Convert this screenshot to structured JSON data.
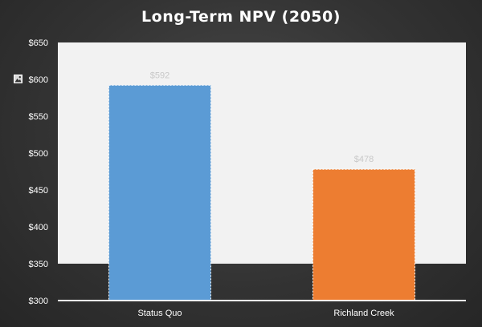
{
  "chart_data": {
    "type": "bar",
    "title": "Long-Term NPV (2050)",
    "xlabel": "",
    "ylabel": "",
    "categories": [
      "Status Quo",
      "Richland Creek"
    ],
    "values": [
      592,
      478
    ],
    "data_labels": [
      "$592",
      "$478"
    ],
    "ylim": [
      300,
      650
    ],
    "yticks": [
      300,
      350,
      400,
      450,
      500,
      550,
      600,
      650
    ],
    "ytick_labels": [
      "$300",
      "$350",
      "$400",
      "$450",
      "$500",
      "$550",
      "$600",
      "$650"
    ],
    "grid": false,
    "legend": "none",
    "colors": [
      "#5b9bd5",
      "#ed7d31"
    ],
    "plot_background": "#f2f2f2",
    "plot_background_floor": 350
  },
  "icons": {
    "side_icon": "image-icon"
  }
}
